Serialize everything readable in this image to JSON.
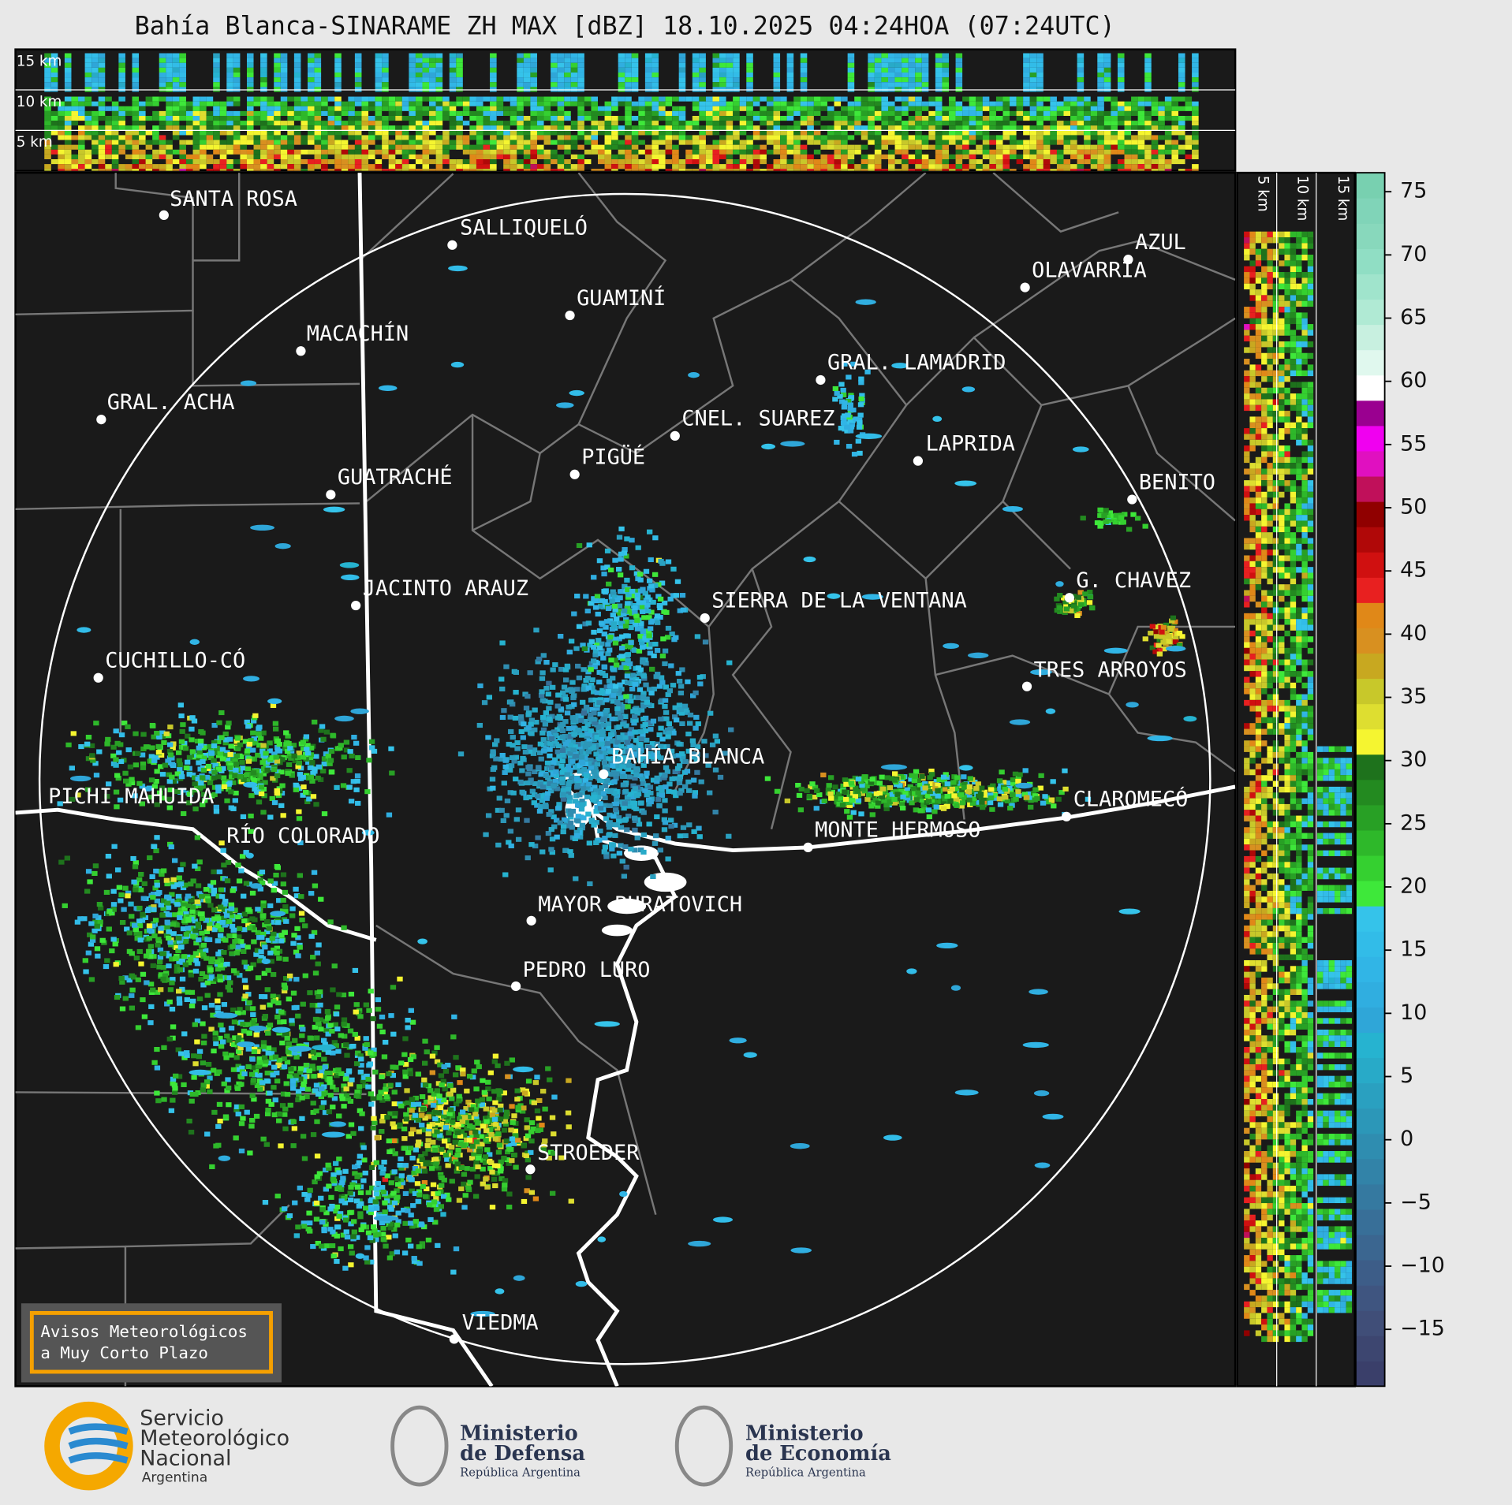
{
  "header": {
    "title": "Bahía Blanca-SINARAME ZH MAX [dBZ] 18.10.2025 04:24HOA (07:24UTC)"
  },
  "top_panel": {
    "height_labels": [
      "15 km",
      "10 km",
      "5 km"
    ]
  },
  "side_panel": {
    "height_labels": [
      "5 km",
      "10 km",
      "15 km"
    ]
  },
  "map": {
    "places": [
      "SANTA ROSA",
      "SALLIQUELÓ",
      "GUAMINÍ",
      "MACACHÍN",
      "GRAL. ACHA",
      "AZUL",
      "OLAVARRÍA",
      "GRAL. LAMADRID",
      "CNEL. SUAREZ",
      "LAPRIDA",
      "PIGÜÉ",
      "GUATRACHÉ",
      "BENITO",
      "JACINTO ARAUZ",
      "G. CHAVEZ",
      "SIERRA DE LA VENTANA",
      "CUCHILLO-CÓ",
      "TRES ARROYOS",
      "BAHÍA BLANCA",
      "PICHI MAHUIDA",
      "CLAROMECÓ",
      "MONTE HERMOSO",
      "RÍO COLORADO",
      "MAYOR BURATOVICH",
      "PEDRO LURO",
      "STROEDER",
      "VIEDMA"
    ]
  },
  "colorbar": {
    "lim": [
      -19.5,
      76.5
    ],
    "colors": [
      "#3a3f6a",
      "#3d4670",
      "#404e78",
      "#3f5580",
      "#3d5d88",
      "#3b6690",
      "#386f98",
      "#3579a0",
      "#3283a8",
      "#2f8db0",
      "#2c97b8",
      "#2aa0c0",
      "#28aac8",
      "#26b3d0",
      "#2fa6d8",
      "#30aee0",
      "#31b5e6",
      "#32bce8",
      "#35c3ea",
      "#3ee83a",
      "#35d030",
      "#2eb82a",
      "#28a025",
      "#238a20",
      "#1e721c",
      "#f5f530",
      "#dede30",
      "#c8c82a",
      "#c8a820",
      "#d89020",
      "#e08818",
      "#e82020",
      "#d01010",
      "#b00808",
      "#900000",
      "#c0105a",
      "#e010c0",
      "#f000f0",
      "#9a0090",
      "#ffffff",
      "#e0f8ee",
      "#c8f0e0",
      "#b0ead4",
      "#a0e4cc",
      "#90dec4",
      "#88d8bc",
      "#80d4b8",
      "#78d0b0"
    ],
    "ticks": [
      {
        "value": -15,
        "label": "−15"
      },
      {
        "value": -10,
        "label": "−10"
      },
      {
        "value": -5,
        "label": "−5"
      },
      0,
      5,
      10,
      15,
      20,
      25,
      30,
      35,
      40,
      45,
      50,
      55,
      60,
      65,
      70,
      75
    ]
  },
  "notice": {
    "lines": [
      "Avisos Meteorológicos",
      "a Muy Corto Plazo"
    ]
  },
  "footer": {
    "smn": [
      "Servicio",
      "Meteorológico",
      "Nacional",
      "Argentina"
    ],
    "defensa": [
      "Ministerio",
      "de Defensa",
      "República Argentina"
    ],
    "economia": [
      "Ministerio",
      "de Economía",
      "República Argentina"
    ]
  }
}
